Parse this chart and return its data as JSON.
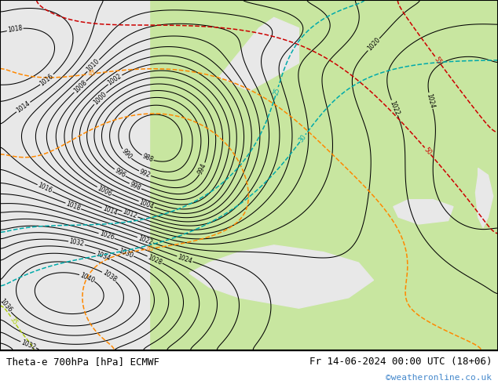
{
  "title_left": "Theta-e 700hPa [hPa] ECMWF",
  "title_right": "Fr 14-06-2024 00:00 UTC (18+06)",
  "watermark": "©weatheronline.co.uk",
  "watermark_color": "#4488cc",
  "ocean_color": "#e8e8e8",
  "land_color": "#c8e6a0",
  "coast_color": "#888888",
  "border_color": "#000000"
}
